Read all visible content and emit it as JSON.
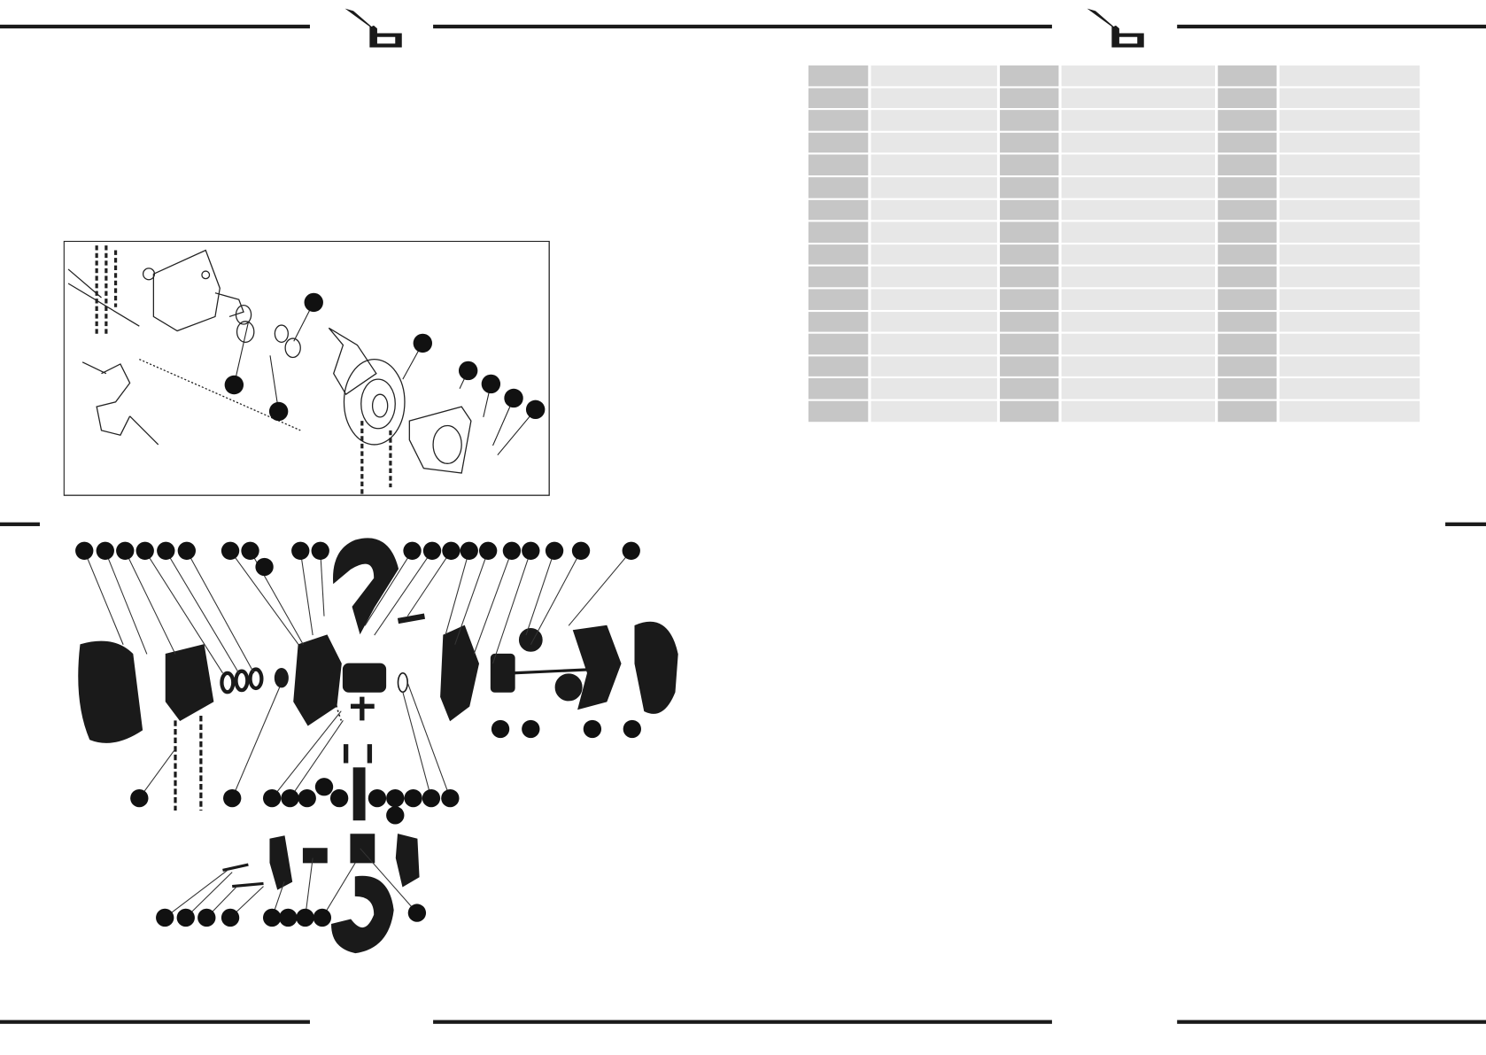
{
  "document": {
    "logo": "brand-logo-b",
    "colors": {
      "rule": "#1a1a1a",
      "number_cell": "#c6c6c6",
      "description_cell": "#e7e7e7",
      "callout": "#111111"
    }
  },
  "parts_table": {
    "rows": [
      [
        "",
        "",
        "",
        "",
        "",
        ""
      ],
      [
        "",
        "",
        "",
        "",
        "",
        ""
      ],
      [
        "",
        "",
        "",
        "",
        "",
        ""
      ],
      [
        "",
        "",
        "",
        "",
        "",
        ""
      ],
      [
        "",
        "",
        "",
        "",
        "",
        ""
      ],
      [
        "",
        "",
        "",
        "",
        "",
        ""
      ],
      [
        "",
        "",
        "",
        "",
        "",
        ""
      ],
      [
        "",
        "",
        "",
        "",
        "",
        ""
      ],
      [
        "",
        "",
        "",
        "",
        "",
        ""
      ],
      [
        "",
        "",
        "",
        "",
        "",
        ""
      ],
      [
        "",
        "",
        "",
        "",
        "",
        ""
      ],
      [
        "",
        "",
        "",
        "",
        "",
        ""
      ],
      [
        "",
        "",
        "",
        "",
        "",
        ""
      ],
      [
        "",
        "",
        "",
        "",
        "",
        ""
      ],
      [
        "",
        "",
        "",
        "",
        "",
        ""
      ],
      [
        "",
        "",
        "",
        "",
        "",
        ""
      ]
    ]
  },
  "diagrams": {
    "upper": {
      "icon": "chain-hoist-exploded-line-drawing"
    },
    "lower": {
      "icon": "chain-hoist-exploded-photo-drawing"
    }
  }
}
